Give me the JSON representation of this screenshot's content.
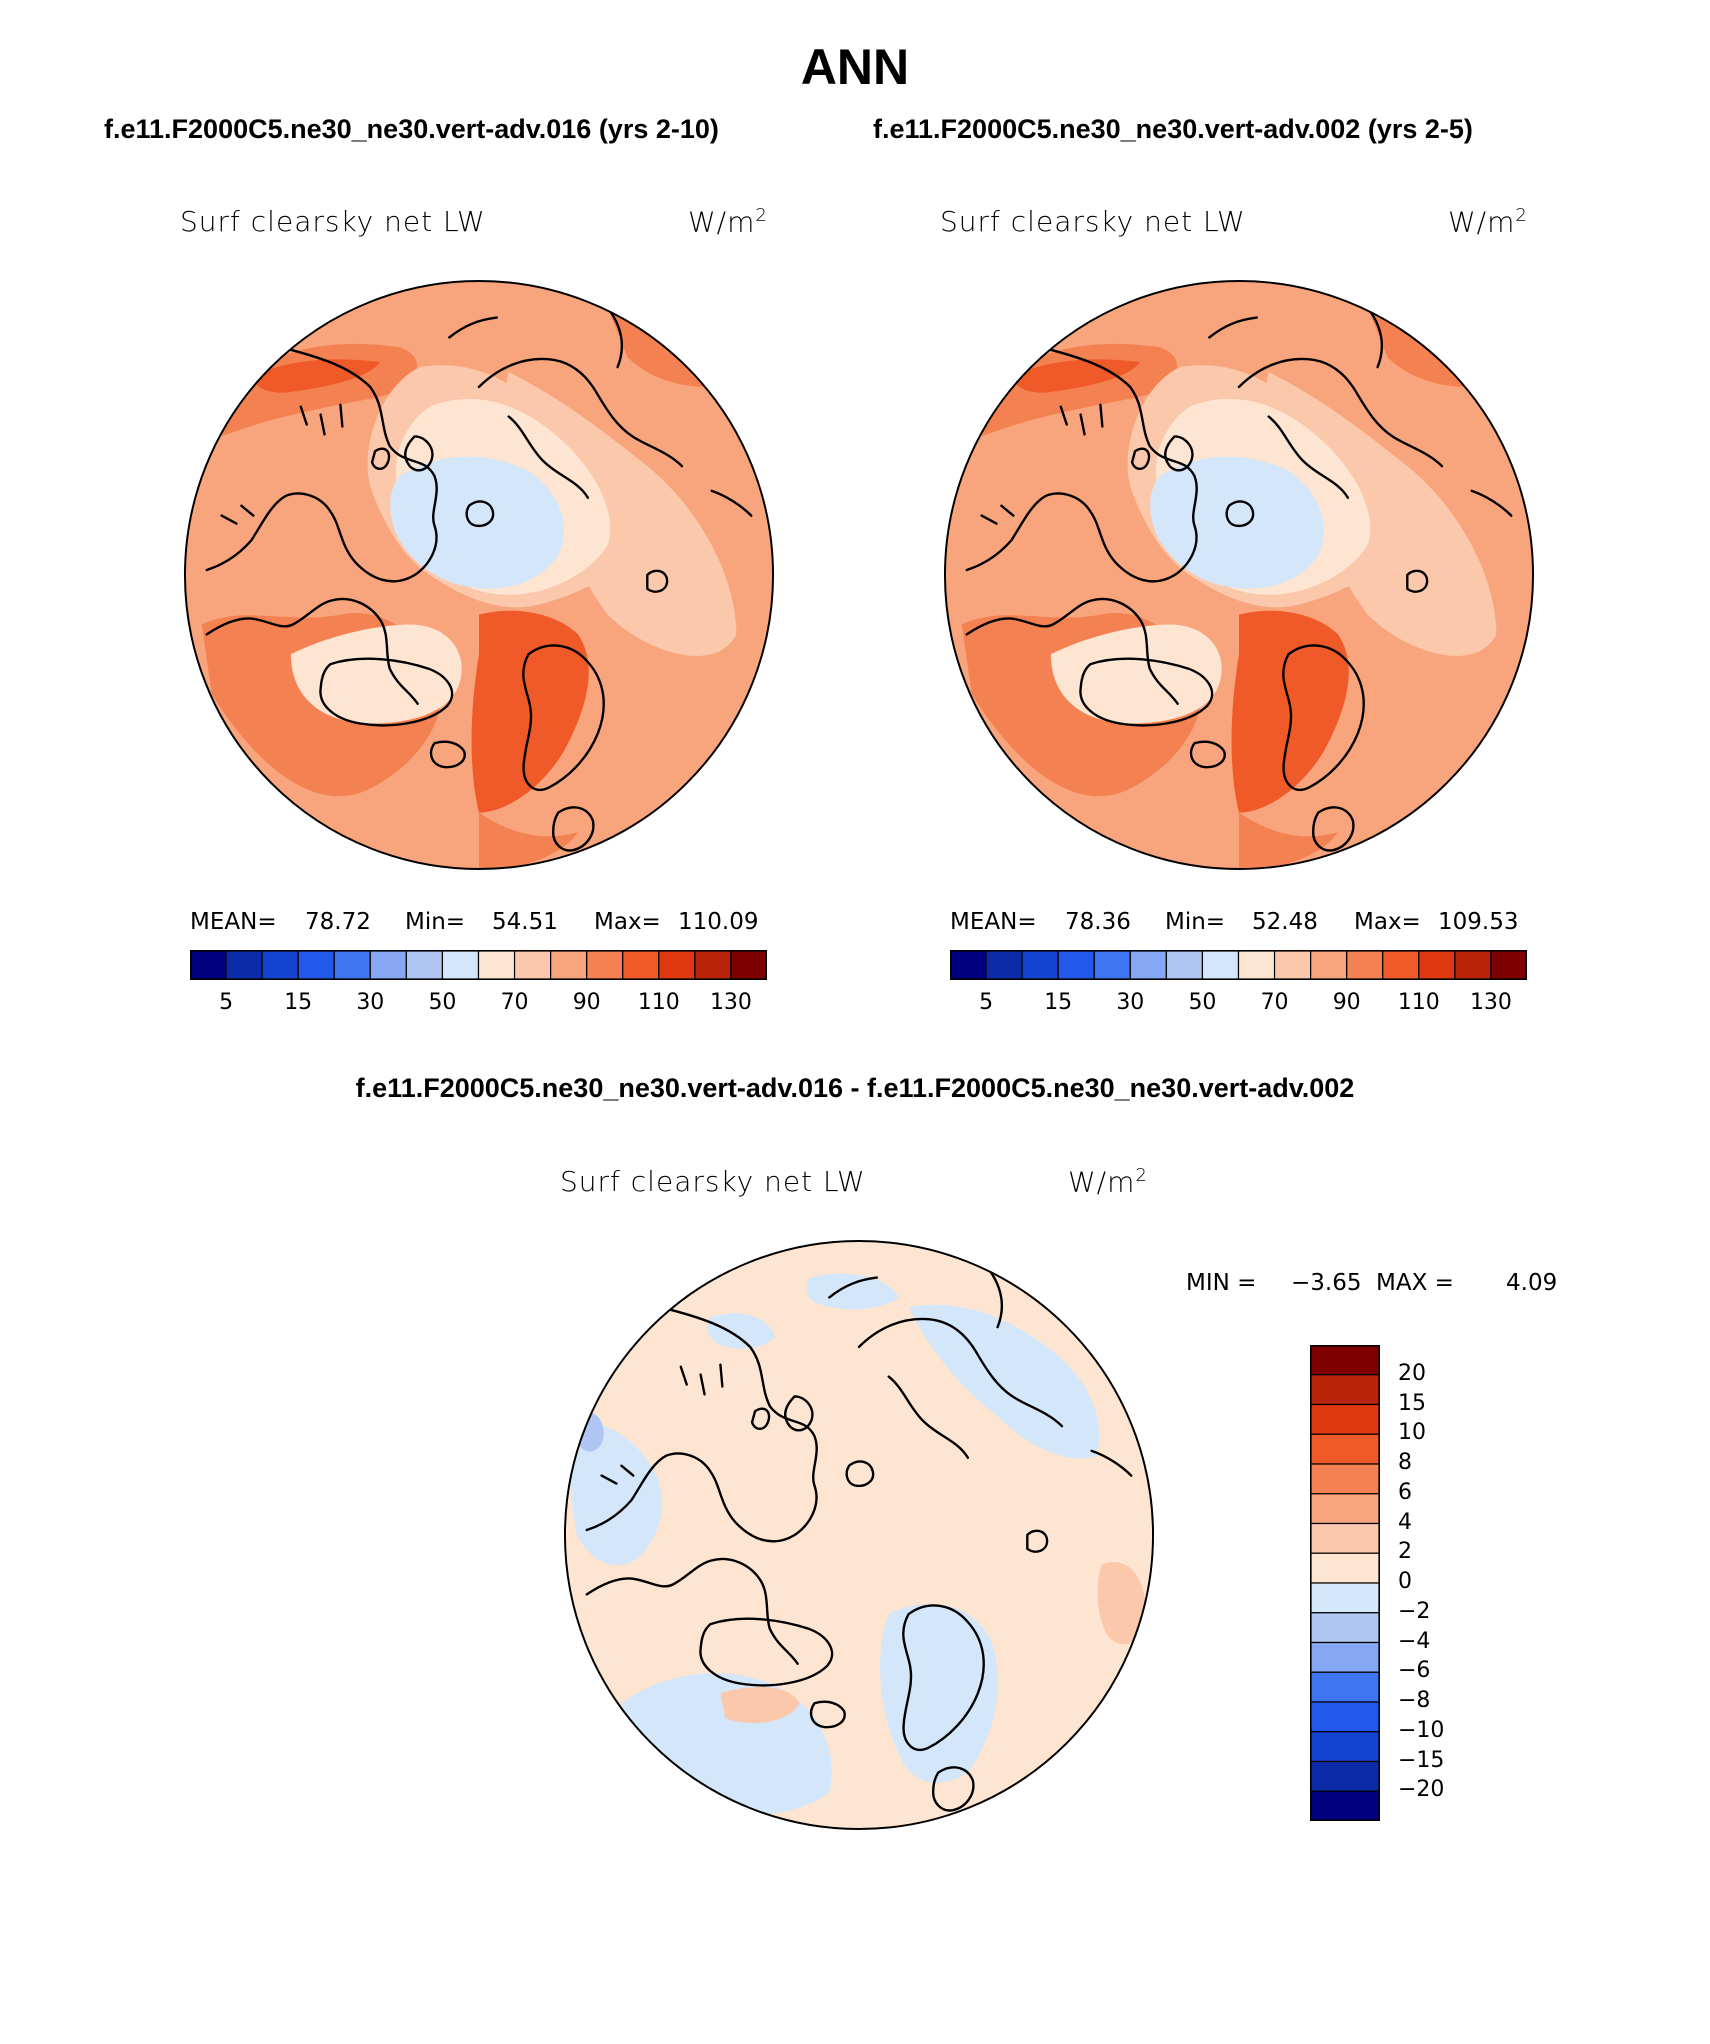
{
  "figure": {
    "season": "ANN",
    "case_a_label": "f.e11.F2000C5.ne30_ne30.vert-adv.016 (yrs 2-10)",
    "case_b_label": "f.e11.F2000C5.ne30_ne30.vert-adv.002 (yrs 2-5)",
    "diff_label": "f.e11.F2000C5.ne30_ne30.vert-adv.016 - f.e11.F2000C5.ne30_ne30.vert-adv.002"
  },
  "panels": [
    {
      "id": "case_a",
      "variable": "Surf clearsky net LW",
      "units_base": "W/m",
      "units_exp": "2",
      "stats": {
        "mean_label": "MEAN=",
        "mean": "78.72",
        "min_label": "Min=",
        "min": "54.51",
        "max_label": "Max=",
        "max": "110.09"
      }
    },
    {
      "id": "case_b",
      "variable": "Surf clearsky net LW",
      "units_base": "W/m",
      "units_exp": "2",
      "stats": {
        "mean_label": "MEAN=",
        "mean": "78.36",
        "min_label": "Min=",
        "min": "52.48",
        "max_label": "Max=",
        "max": "109.53"
      }
    },
    {
      "id": "difference",
      "variable": "Surf clearsky net LW",
      "units_base": "W/m",
      "units_exp": "2",
      "stats": {
        "min_label": "MIN =",
        "min": "−3.65",
        "max_label": "MAX =",
        "max": "4.09"
      }
    }
  ],
  "colorbar_main": {
    "labels": [
      "5",
      "15",
      "30",
      "50",
      "70",
      "90",
      "110",
      "130"
    ],
    "colors": [
      "#000080",
      "#0b2ca6",
      "#1444cf",
      "#2259ea",
      "#3d75f2",
      "#86a7f3",
      "#afc6f3",
      "#d3e6fa",
      "#fde5d2",
      "#fbc8ac",
      "#f8a47c",
      "#f48152",
      "#f05a28",
      "#e03810",
      "#b82408",
      "#7f0000"
    ]
  },
  "colorbar_diff": {
    "labels": [
      "20",
      "15",
      "10",
      "8",
      "6",
      "4",
      "2",
      "0",
      "−2",
      "−4",
      "−6",
      "−8",
      "−10",
      "−15",
      "−20"
    ],
    "colors": [
      "#7f0000",
      "#b82408",
      "#e03810",
      "#f05a28",
      "#f48152",
      "#f8a47c",
      "#fbc8ac",
      "#fde5d2",
      "#d3e6fa",
      "#afc6f3",
      "#86a7f3",
      "#3d75f2",
      "#2259ea",
      "#1444cf",
      "#0b2ca6",
      "#000080"
    ]
  },
  "map": {
    "projection": "north polar stereographic",
    "field_colors": {
      "main_background": "#f8a47c",
      "main_light": "#fbc8ac",
      "main_pale": "#fde5d2",
      "main_ice": "#d3e6fa",
      "main_strong": "#f48152",
      "main_stronger": "#f05a28",
      "diff_background": "#fde5d2",
      "diff_negative": "#d3e6fa",
      "diff_negative_strong": "#afc6f3",
      "diff_positive": "#fbc8ac"
    }
  }
}
